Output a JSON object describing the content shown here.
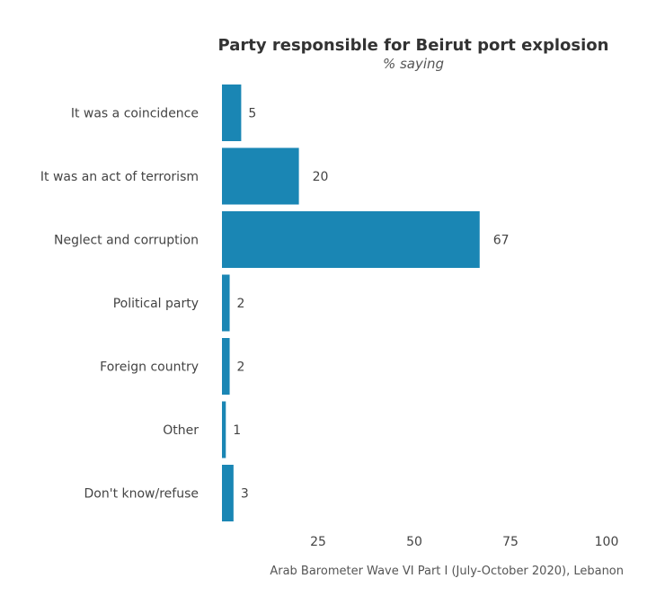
{
  "chart_data": {
    "type": "bar",
    "orientation": "horizontal",
    "title": "Party responsible for Beirut port explosion",
    "subtitle": "% saying",
    "source": "Arab Barometer Wave VI Part I (July-October 2020), Lebanon",
    "categories": [
      "It was a coincidence",
      "It was an act of terrorism",
      "Neglect and corruption",
      "Political party",
      "Foreign country",
      "Other",
      "Don't know/refuse"
    ],
    "values": [
      5,
      20,
      67,
      2,
      2,
      1,
      3
    ],
    "data_labels": [
      "5",
      "20",
      "67",
      "2",
      "2",
      "1",
      "3"
    ],
    "xlim": [
      0,
      100
    ],
    "x_ticks": [
      25,
      50,
      75,
      100
    ],
    "x_tick_labels": [
      "25",
      "50",
      "75",
      "100"
    ],
    "grid": false,
    "legend": "none",
    "bar_color": "#1a86b4"
  }
}
